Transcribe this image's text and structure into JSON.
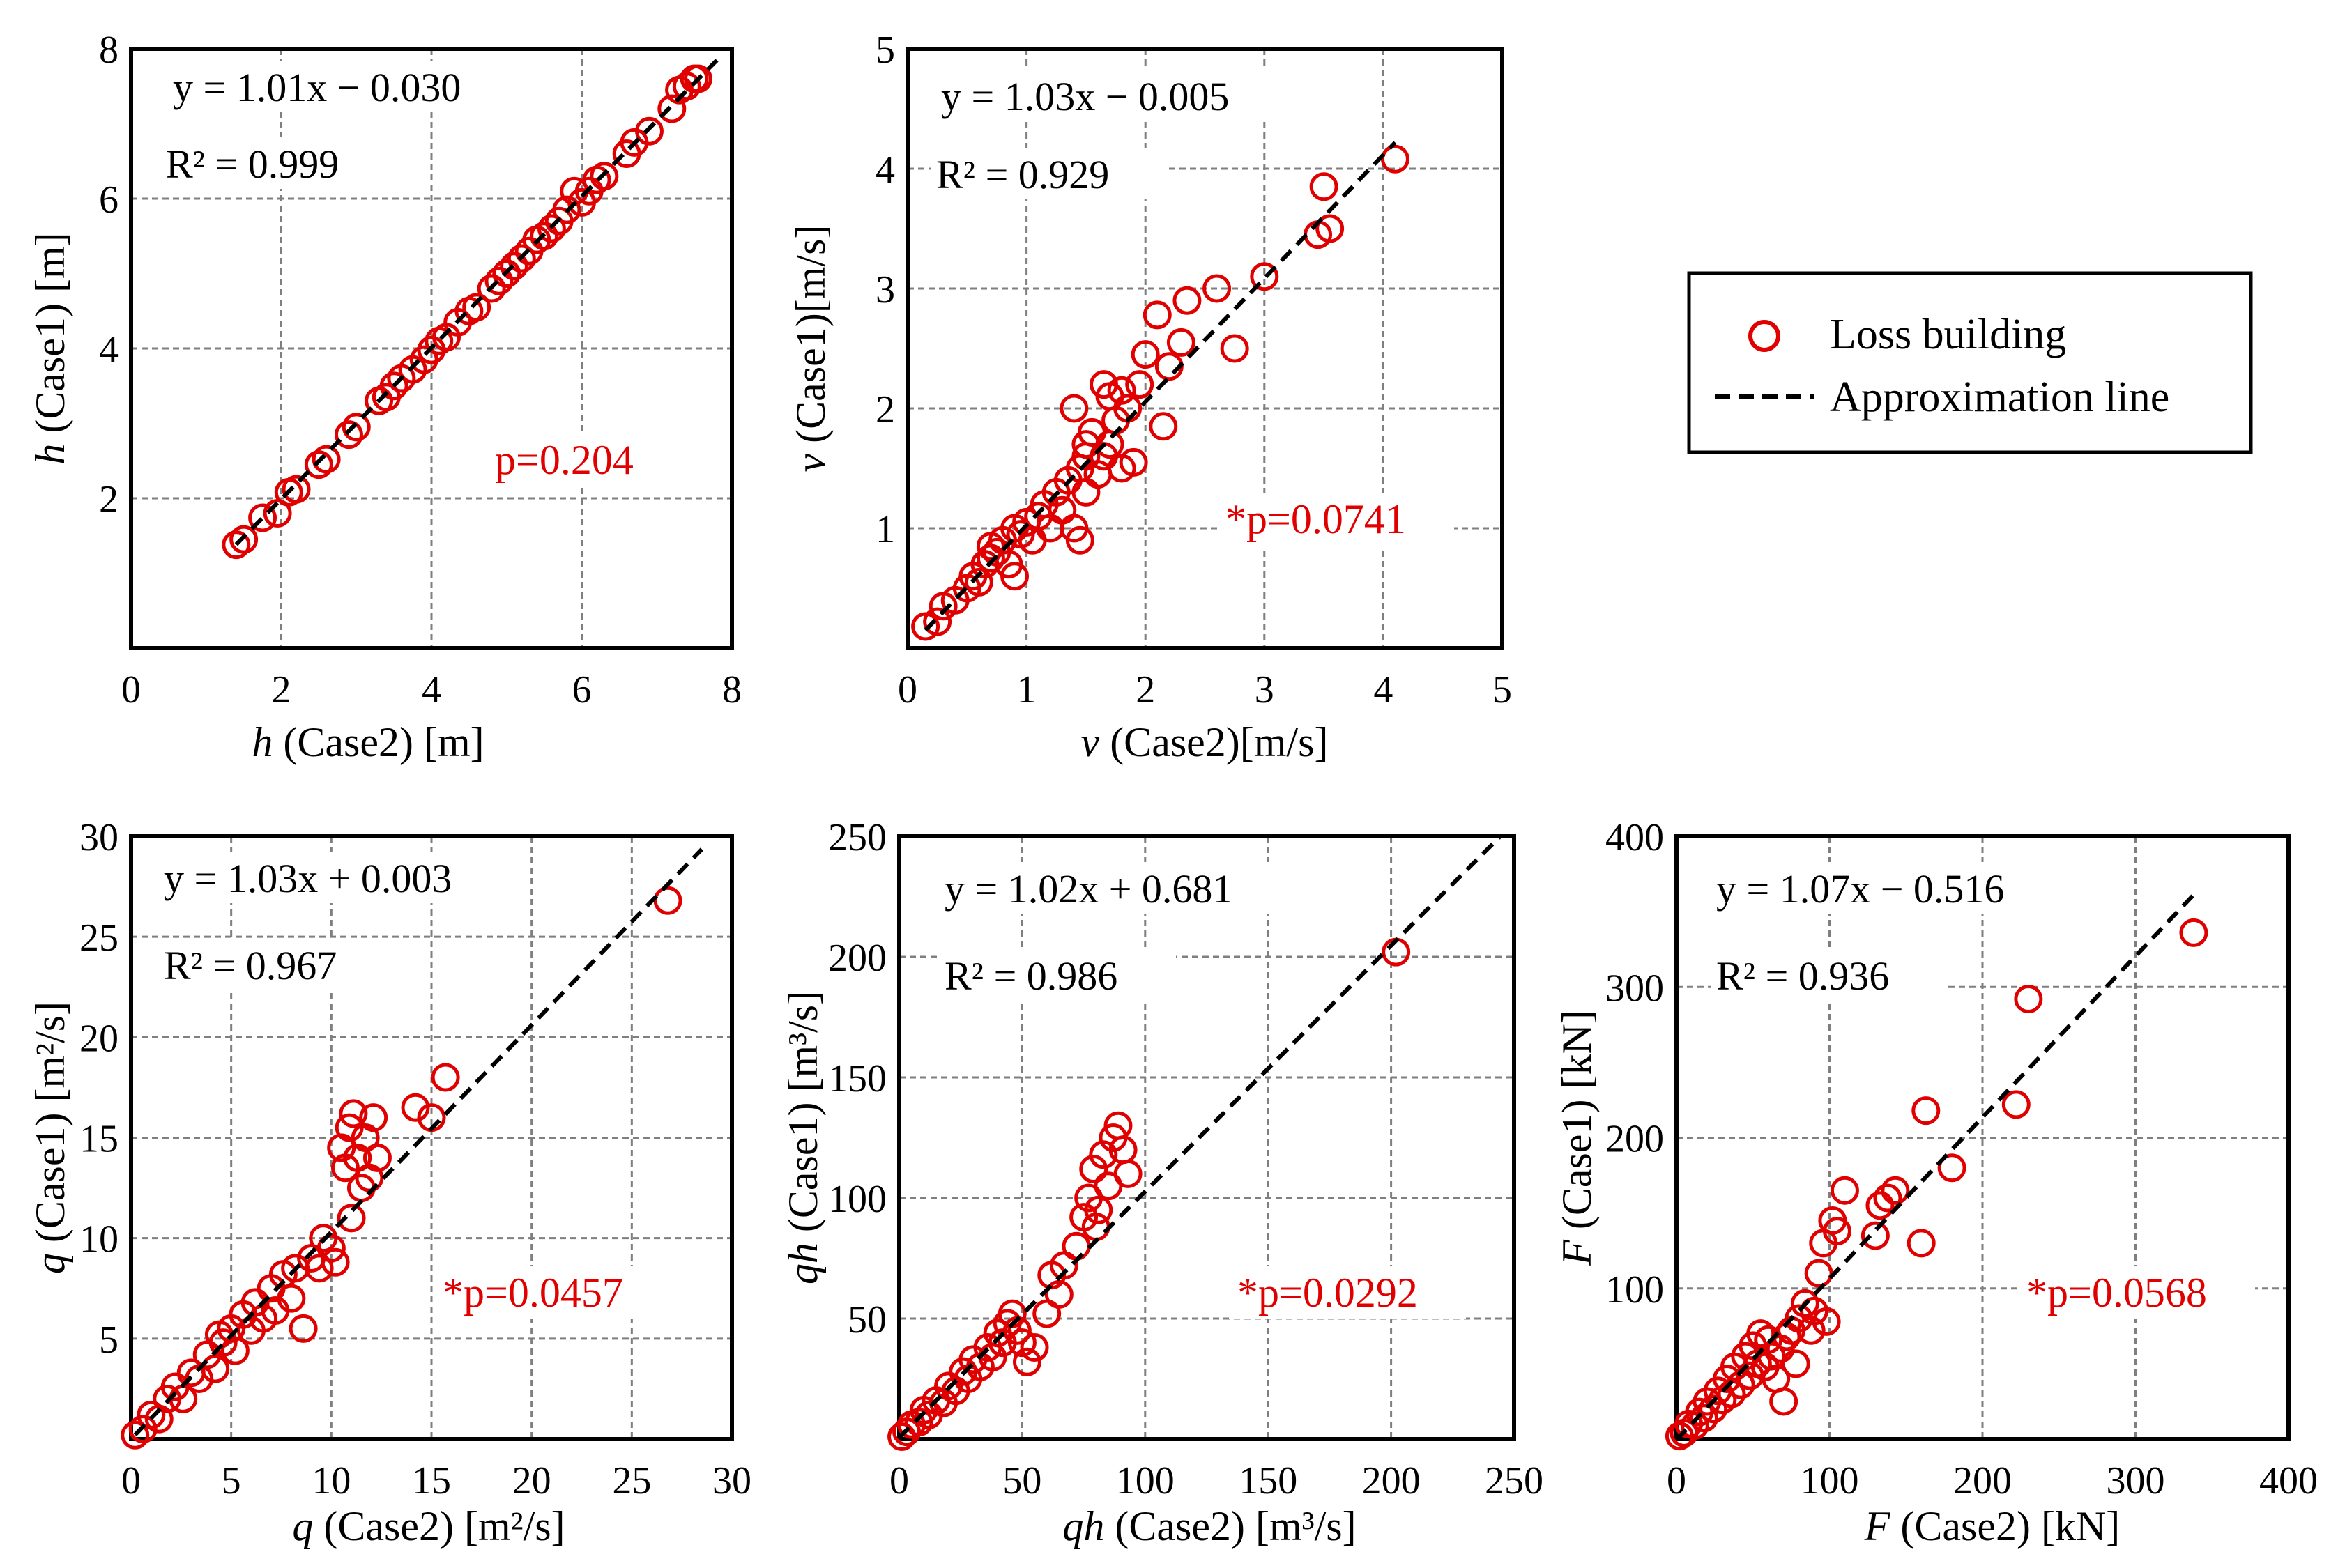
{
  "colors": {
    "marker": "#e00000",
    "line": "#000000",
    "grid": "#7f7f7f",
    "pvalue": "#e00000"
  },
  "legend": {
    "items": [
      {
        "label": "Loss building",
        "icon": "red-circle-marker"
      },
      {
        "label": "Approximation line",
        "icon": "dashed-line"
      }
    ]
  },
  "chart_data": [
    {
      "id": "h",
      "type": "scatter",
      "xlabel_var": "h",
      "xlabel_rest": " (Case2) [m]",
      "ylabel_var": "h",
      "ylabel_rest": " (Case1) [m]",
      "xlim": [
        0,
        8
      ],
      "ylim": [
        0,
        8
      ],
      "xticks": [
        {
          "v": 0,
          "label": "0"
        },
        {
          "v": 2,
          "label": "2"
        },
        {
          "v": 4,
          "label": "4"
        },
        {
          "v": 6,
          "label": "6"
        },
        {
          "v": 8,
          "label": "8"
        }
      ],
      "yticks": [
        {
          "v": 2,
          "label": "2"
        },
        {
          "v": 4,
          "label": "4"
        },
        {
          "v": 6,
          "label": "6"
        },
        {
          "v": 8,
          "label": "8"
        }
      ],
      "equation": "y = 1.01x − 0.030",
      "r2": "R² = 0.999",
      "pvalue": "p=0.204",
      "fit": {
        "slope": 1.01,
        "intercept": -0.03
      },
      "fit_range": [
        1.4,
        7.8
      ],
      "points": [
        [
          1.4,
          1.38
        ],
        [
          1.5,
          1.45
        ],
        [
          1.75,
          1.74
        ],
        [
          1.95,
          1.8
        ],
        [
          2.1,
          2.08
        ],
        [
          2.2,
          2.12
        ],
        [
          2.5,
          2.45
        ],
        [
          2.6,
          2.52
        ],
        [
          2.9,
          2.85
        ],
        [
          3.0,
          2.95
        ],
        [
          3.3,
          3.3
        ],
        [
          3.4,
          3.35
        ],
        [
          3.5,
          3.5
        ],
        [
          3.6,
          3.6
        ],
        [
          3.75,
          3.72
        ],
        [
          3.9,
          3.85
        ],
        [
          4.0,
          3.98
        ],
        [
          4.1,
          4.1
        ],
        [
          4.2,
          4.15
        ],
        [
          4.35,
          4.35
        ],
        [
          4.5,
          4.5
        ],
        [
          4.6,
          4.55
        ],
        [
          4.8,
          4.8
        ],
        [
          4.9,
          4.9
        ],
        [
          5.0,
          5.0
        ],
        [
          5.1,
          5.1
        ],
        [
          5.2,
          5.2
        ],
        [
          5.3,
          5.3
        ],
        [
          5.4,
          5.45
        ],
        [
          5.5,
          5.5
        ],
        [
          5.6,
          5.6
        ],
        [
          5.7,
          5.7
        ],
        [
          5.8,
          5.85
        ],
        [
          5.9,
          6.1
        ],
        [
          6.0,
          5.95
        ],
        [
          6.1,
          6.1
        ],
        [
          6.2,
          6.25
        ],
        [
          6.3,
          6.3
        ],
        [
          6.6,
          6.6
        ],
        [
          6.7,
          6.75
        ],
        [
          6.9,
          6.9
        ],
        [
          7.2,
          7.2
        ],
        [
          7.3,
          7.45
        ],
        [
          7.4,
          7.5
        ],
        [
          7.5,
          7.6
        ],
        [
          7.55,
          7.6
        ]
      ]
    },
    {
      "id": "v",
      "type": "scatter",
      "xlabel_var": "v",
      "xlabel_rest": " (Case2)[m/s]",
      "ylabel_var": "v",
      "ylabel_rest": " (Case1)[m/s]",
      "xlim": [
        0,
        5
      ],
      "ylim": [
        0,
        5
      ],
      "xticks": [
        {
          "v": 0,
          "label": "0"
        },
        {
          "v": 1,
          "label": "1"
        },
        {
          "v": 2,
          "label": "2"
        },
        {
          "v": 3,
          "label": "3"
        },
        {
          "v": 4,
          "label": "4"
        },
        {
          "v": 5,
          "label": "5"
        }
      ],
      "yticks": [
        {
          "v": 1,
          "label": "1"
        },
        {
          "v": 2,
          "label": "2"
        },
        {
          "v": 3,
          "label": "3"
        },
        {
          "v": 4,
          "label": "4"
        },
        {
          "v": 5,
          "label": "5"
        }
      ],
      "equation": "y = 1.03x − 0.005",
      "r2": "R² = 0.929",
      "pvalue": "*p=0.0741",
      "fit": {
        "slope": 1.03,
        "intercept": -0.005
      },
      "fit_range": [
        0.15,
        4.1
      ],
      "points": [
        [
          0.15,
          0.18
        ],
        [
          0.25,
          0.22
        ],
        [
          0.3,
          0.35
        ],
        [
          0.4,
          0.4
        ],
        [
          0.5,
          0.5
        ],
        [
          0.55,
          0.6
        ],
        [
          0.6,
          0.55
        ],
        [
          0.65,
          0.7
        ],
        [
          0.7,
          0.75
        ],
        [
          0.7,
          0.85
        ],
        [
          0.75,
          0.8
        ],
        [
          0.8,
          0.9
        ],
        [
          0.85,
          0.7
        ],
        [
          0.9,
          0.6
        ],
        [
          0.9,
          1.0
        ],
        [
          0.95,
          0.95
        ],
        [
          1.0,
          1.05
        ],
        [
          1.05,
          0.9
        ],
        [
          1.1,
          1.1
        ],
        [
          1.15,
          1.2
        ],
        [
          1.2,
          1.0
        ],
        [
          1.25,
          1.3
        ],
        [
          1.3,
          1.15
        ],
        [
          1.35,
          1.4
        ],
        [
          1.4,
          1.0
        ],
        [
          1.45,
          0.9
        ],
        [
          1.45,
          1.5
        ],
        [
          1.5,
          1.6
        ],
        [
          1.5,
          1.3
        ],
        [
          1.55,
          1.8
        ],
        [
          1.6,
          1.45
        ],
        [
          1.65,
          2.2
        ],
        [
          1.65,
          1.6
        ],
        [
          1.7,
          2.1
        ],
        [
          1.7,
          1.7
        ],
        [
          1.75,
          1.9
        ],
        [
          1.8,
          1.5
        ],
        [
          1.85,
          2.0
        ],
        [
          1.9,
          1.55
        ],
        [
          1.95,
          2.2
        ],
        [
          1.4,
          2.0
        ],
        [
          1.5,
          1.7
        ],
        [
          1.8,
          2.15
        ],
        [
          2.0,
          2.45
        ],
        [
          2.1,
          2.78
        ],
        [
          2.15,
          1.85
        ],
        [
          2.2,
          2.35
        ],
        [
          2.3,
          2.55
        ],
        [
          2.35,
          2.9
        ],
        [
          2.6,
          3.0
        ],
        [
          2.75,
          2.5
        ],
        [
          3.0,
          3.1
        ],
        [
          3.45,
          3.45
        ],
        [
          3.5,
          3.85
        ],
        [
          3.55,
          3.5
        ],
        [
          4.1,
          4.08
        ]
      ]
    },
    {
      "id": "q",
      "type": "scatter",
      "xlabel_var": "q",
      "xlabel_rest": " (Case2) [m²/s]",
      "ylabel_var": "q",
      "ylabel_rest": " (Case1) [m²/s]",
      "xlim": [
        0,
        30
      ],
      "ylim": [
        0,
        30
      ],
      "xticks": [
        {
          "v": 0,
          "label": "0"
        },
        {
          "v": 5,
          "label": "5"
        },
        {
          "v": 10,
          "label": "10"
        },
        {
          "v": 15,
          "label": "15"
        },
        {
          "v": 20,
          "label": "20"
        },
        {
          "v": 25,
          "label": "25"
        },
        {
          "v": 30,
          "label": "30"
        }
      ],
      "yticks": [
        {
          "v": 5,
          "label": "5"
        },
        {
          "v": 10,
          "label": "10"
        },
        {
          "v": 15,
          "label": "15"
        },
        {
          "v": 20,
          "label": "20"
        },
        {
          "v": 25,
          "label": "25"
        },
        {
          "v": 30,
          "label": "30"
        }
      ],
      "equation": "y = 1.03x + 0.003",
      "r2": "R² = 0.967",
      "pvalue": "*p=0.0457",
      "fit": {
        "slope": 1.03,
        "intercept": 0.003
      },
      "fit_range": [
        0.2,
        28.5
      ],
      "points": [
        [
          0.2,
          0.2
        ],
        [
          0.6,
          0.5
        ],
        [
          1.0,
          1.2
        ],
        [
          1.4,
          1.0
        ],
        [
          1.8,
          2.0
        ],
        [
          2.2,
          2.6
        ],
        [
          2.6,
          2.0
        ],
        [
          3.0,
          3.3
        ],
        [
          3.4,
          3.0
        ],
        [
          3.8,
          4.2
        ],
        [
          4.2,
          3.5
        ],
        [
          4.4,
          5.2
        ],
        [
          4.6,
          4.8
        ],
        [
          5.0,
          5.5
        ],
        [
          5.2,
          4.4
        ],
        [
          5.6,
          6.2
        ],
        [
          6.0,
          5.4
        ],
        [
          6.2,
          6.8
        ],
        [
          6.6,
          6.0
        ],
        [
          7.0,
          7.5
        ],
        [
          7.2,
          6.4
        ],
        [
          7.6,
          8.2
        ],
        [
          8.0,
          7.0
        ],
        [
          8.2,
          8.5
        ],
        [
          8.6,
          5.5
        ],
        [
          9.0,
          9.0
        ],
        [
          9.4,
          8.5
        ],
        [
          9.6,
          10.0
        ],
        [
          10.0,
          9.5
        ],
        [
          10.2,
          8.8
        ],
        [
          10.5,
          14.5
        ],
        [
          10.7,
          13.5
        ],
        [
          10.9,
          15.5
        ],
        [
          11.1,
          16.2
        ],
        [
          11.3,
          14.0
        ],
        [
          11.5,
          12.5
        ],
        [
          11.7,
          15.0
        ],
        [
          11.9,
          13.0
        ],
        [
          12.1,
          16.0
        ],
        [
          12.3,
          14.0
        ],
        [
          11.0,
          11.0
        ],
        [
          14.2,
          16.5
        ],
        [
          15.0,
          16.0
        ],
        [
          15.7,
          18.0
        ],
        [
          26.8,
          26.8
        ]
      ]
    },
    {
      "id": "qh",
      "type": "scatter",
      "xlabel_var": "qh",
      "xlabel_rest": " (Case2) [m³/s]",
      "ylabel_var": "qh",
      "ylabel_rest": " (Case1) [m³/s]",
      "xlim": [
        0,
        250
      ],
      "ylim": [
        0,
        250
      ],
      "xticks": [
        {
          "v": 0,
          "label": "0"
        },
        {
          "v": 50,
          "label": "50"
        },
        {
          "v": 100,
          "label": "100"
        },
        {
          "v": 150,
          "label": "150"
        },
        {
          "v": 200,
          "label": "200"
        },
        {
          "v": 250,
          "label": "250"
        }
      ],
      "yticks": [
        {
          "v": 50,
          "label": "50"
        },
        {
          "v": 100,
          "label": "100"
        },
        {
          "v": 150,
          "label": "150"
        },
        {
          "v": 200,
          "label": "200"
        },
        {
          "v": 250,
          "label": "250"
        }
      ],
      "equation": "y = 1.02x + 0.681",
      "r2": "R² = 0.986",
      "pvalue": "*p=0.0292",
      "fit": {
        "slope": 1.02,
        "intercept": 0.681
      },
      "fit_range": [
        0,
        244
      ],
      "points": [
        [
          1,
          1
        ],
        [
          3,
          3
        ],
        [
          5,
          6
        ],
        [
          8,
          7
        ],
        [
          10,
          12
        ],
        [
          12,
          10
        ],
        [
          15,
          16
        ],
        [
          18,
          15
        ],
        [
          20,
          22
        ],
        [
          23,
          20
        ],
        [
          26,
          28
        ],
        [
          28,
          25
        ],
        [
          30,
          33
        ],
        [
          33,
          30
        ],
        [
          36,
          38
        ],
        [
          38,
          34
        ],
        [
          40,
          44
        ],
        [
          42,
          40
        ],
        [
          44,
          48
        ],
        [
          46,
          52
        ],
        [
          48,
          45
        ],
        [
          50,
          40
        ],
        [
          52,
          32
        ],
        [
          55,
          38
        ],
        [
          60,
          52
        ],
        [
          62,
          68
        ],
        [
          65,
          60
        ],
        [
          67,
          72
        ],
        [
          72,
          80
        ],
        [
          75,
          92
        ],
        [
          77,
          100
        ],
        [
          79,
          112
        ],
        [
          81,
          95
        ],
        [
          83,
          118
        ],
        [
          85,
          105
        ],
        [
          87,
          125
        ],
        [
          89,
          130
        ],
        [
          91,
          120
        ],
        [
          93,
          110
        ],
        [
          80,
          88
        ],
        [
          202,
          202
        ]
      ]
    },
    {
      "id": "F",
      "type": "scatter",
      "xlabel_var": "F",
      "xlabel_rest": " (Case2) [kN]",
      "ylabel_var": "F",
      "ylabel_rest": " (Case1) [kN]",
      "xlim": [
        0,
        400
      ],
      "ylim": [
        0,
        400
      ],
      "xticks": [
        {
          "v": 0,
          "label": "0"
        },
        {
          "v": 100,
          "label": "100"
        },
        {
          "v": 200,
          "label": "200"
        },
        {
          "v": 300,
          "label": "300"
        },
        {
          "v": 400,
          "label": "400"
        }
      ],
      "yticks": [
        {
          "v": 100,
          "label": "100"
        },
        {
          "v": 200,
          "label": "200"
        },
        {
          "v": 300,
          "label": "300"
        },
        {
          "v": 400,
          "label": "400"
        }
      ],
      "equation": "y = 1.07x − 0.516",
      "r2": "R² = 0.936",
      "pvalue": "*p=0.0568",
      "fit": {
        "slope": 1.07,
        "intercept": -0.516
      },
      "fit_range": [
        0,
        338
      ],
      "points": [
        [
          2,
          2
        ],
        [
          5,
          4
        ],
        [
          8,
          10
        ],
        [
          12,
          9
        ],
        [
          15,
          18
        ],
        [
          18,
          14
        ],
        [
          20,
          25
        ],
        [
          24,
          20
        ],
        [
          27,
          32
        ],
        [
          30,
          26
        ],
        [
          33,
          40
        ],
        [
          36,
          30
        ],
        [
          38,
          48
        ],
        [
          42,
          36
        ],
        [
          45,
          55
        ],
        [
          48,
          42
        ],
        [
          50,
          62
        ],
        [
          53,
          50
        ],
        [
          55,
          70
        ],
        [
          58,
          48
        ],
        [
          60,
          66
        ],
        [
          62,
          55
        ],
        [
          65,
          40
        ],
        [
          68,
          60
        ],
        [
          70,
          25
        ],
        [
          72,
          68
        ],
        [
          75,
          72
        ],
        [
          78,
          50
        ],
        [
          80,
          80
        ],
        [
          84,
          90
        ],
        [
          88,
          72
        ],
        [
          90,
          85
        ],
        [
          93,
          110
        ],
        [
          96,
          130
        ],
        [
          98,
          78
        ],
        [
          102,
          145
        ],
        [
          105,
          138
        ],
        [
          110,
          165
        ],
        [
          130,
          135
        ],
        [
          133,
          155
        ],
        [
          138,
          160
        ],
        [
          143,
          165
        ],
        [
          160,
          130
        ],
        [
          163,
          218
        ],
        [
          180,
          180
        ],
        [
          222,
          222
        ],
        [
          230,
          292
        ],
        [
          338,
          336
        ]
      ]
    }
  ]
}
